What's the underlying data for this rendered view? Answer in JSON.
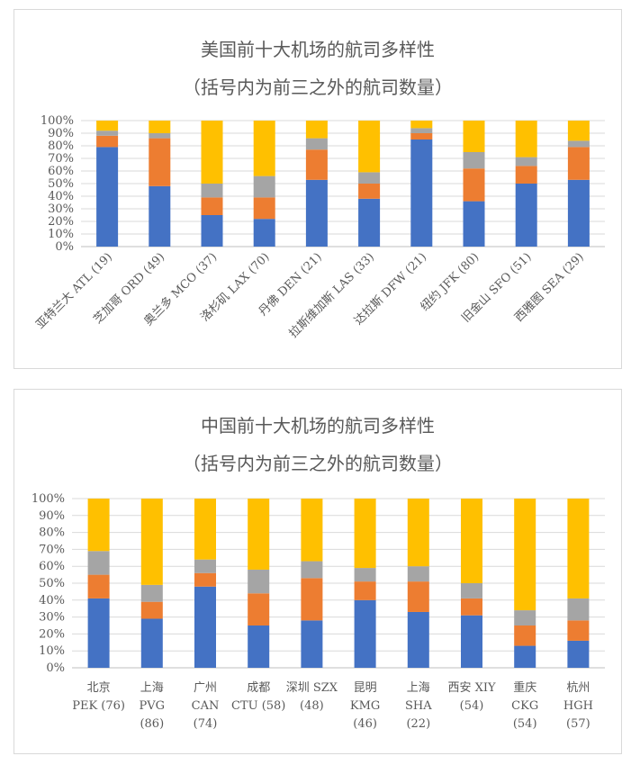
{
  "colors": {
    "s1": "#4472c4",
    "s2": "#ed7d31",
    "s3": "#a5a5a5",
    "s4": "#ffc000",
    "grid": "#d9d9d9",
    "text": "#595959"
  },
  "chart_data": [
    {
      "type": "bar",
      "stacked": true,
      "title": "美国前十大机场的航司多样性",
      "subtitle": "（括号内为前三之外的航司数量）",
      "ylim": [
        0,
        100
      ],
      "yticks": [
        "0%",
        "10%",
        "20%",
        "30%",
        "40%",
        "50%",
        "60%",
        "70%",
        "80%",
        "90%",
        "100%"
      ],
      "categories": [
        "亚特兰大 ATL (19)",
        "芝加哥 ORD (49)",
        "奥兰多 MCO (37)",
        "洛杉矶 LAX (70)",
        "丹佛 DEN (21)",
        "拉斯维加斯 LAS (33)",
        "达拉斯 DFW (21)",
        "纽约 JFK (80)",
        "旧金山 SFO (51)",
        "西雅图 SEA (29)"
      ],
      "series": [
        {
          "values": [
            79,
            48,
            25,
            22,
            53,
            38,
            85,
            36,
            50,
            53
          ]
        },
        {
          "values": [
            9,
            38,
            14,
            17,
            24,
            12,
            5,
            26,
            14,
            26
          ]
        },
        {
          "values": [
            4,
            4,
            11,
            17,
            9,
            9,
            4,
            13,
            7,
            5
          ]
        },
        {
          "values": [
            8,
            10,
            50,
            44,
            14,
            41,
            6,
            25,
            29,
            16
          ]
        }
      ]
    },
    {
      "type": "bar",
      "stacked": true,
      "title": "中国前十大机场的航司多样性",
      "subtitle": "（括号内为前三之外的航司数量）",
      "ylim": [
        0,
        100
      ],
      "yticks": [
        "0%",
        "10%",
        "20%",
        "30%",
        "40%",
        "50%",
        "60%",
        "70%",
        "80%",
        "90%",
        "100%"
      ],
      "categories": [
        [
          "北京",
          "PEK (76)"
        ],
        [
          "上海",
          "PVG",
          "(86)"
        ],
        [
          "广州",
          "CAN",
          "(74)"
        ],
        [
          "成都",
          "CTU (58)"
        ],
        [
          "深圳 SZX",
          "(48)"
        ],
        [
          "昆明",
          "KMG",
          "(46)"
        ],
        [
          "上海",
          "SHA",
          "(22)"
        ],
        [
          "西安 XIY",
          "(54)"
        ],
        [
          "重庆",
          "CKG",
          "(54)"
        ],
        [
          "杭州",
          "HGH",
          "(57)"
        ]
      ],
      "series": [
        {
          "values": [
            41,
            29,
            48,
            25,
            28,
            40,
            33,
            31,
            13,
            16
          ]
        },
        {
          "values": [
            14,
            10,
            8,
            19,
            25,
            11,
            18,
            10,
            12,
            12
          ]
        },
        {
          "values": [
            14,
            10,
            8,
            14,
            10,
            8,
            9,
            9,
            9,
            13
          ]
        },
        {
          "values": [
            31,
            51,
            36,
            42,
            37,
            41,
            40,
            50,
            66,
            59
          ]
        }
      ]
    }
  ]
}
